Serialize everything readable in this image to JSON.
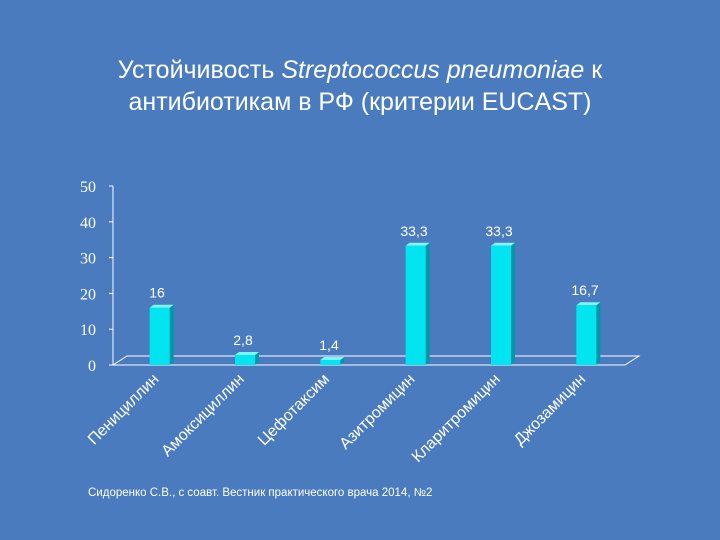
{
  "slide": {
    "title_prefix": "Устойчивость ",
    "title_italic": "Streptococcus pneumoniae",
    "title_suffix_line1": " к",
    "title_line2": "антибиотикам в РФ (критерии EUCAST)",
    "citation": "Сидоренко С.В., с соавт. Вестник практического врача 2014, №2"
  },
  "colors": {
    "background": "#4a7bbf",
    "bar_front": "#00e5f0",
    "bar_side": "#0097a8",
    "bar_top": "#7ff6ff",
    "axis": "#ffffff"
  },
  "chart_data": {
    "type": "bar",
    "categories": [
      "Пенициллин",
      "Амоксициллин",
      "Цефотаксим",
      "Азитромицин",
      "Кларитромицин",
      "Джозамицин"
    ],
    "values": [
      16,
      2.8,
      1.4,
      33.3,
      33.3,
      16.7
    ],
    "value_labels": [
      "16",
      "2,8",
      "1,4",
      "33,3",
      "33,3",
      "16,7"
    ],
    "y_ticks": [
      "0",
      "10",
      "20",
      "30",
      "40",
      "50"
    ],
    "ylim": [
      0,
      50
    ],
    "grid": false,
    "legend": "none",
    "style": "3d"
  }
}
